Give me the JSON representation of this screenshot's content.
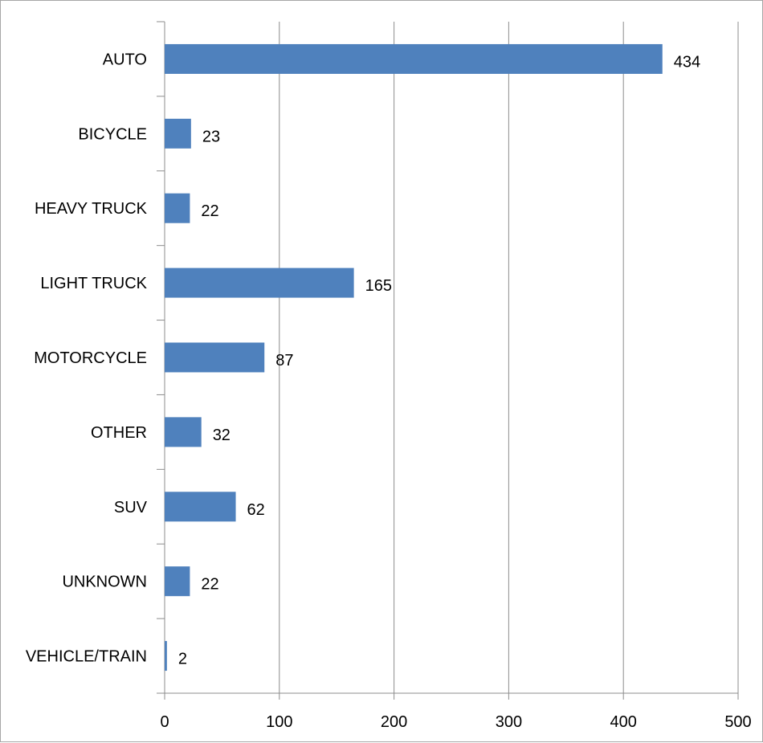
{
  "chart_data": {
    "type": "bar",
    "orientation": "horizontal",
    "categories": [
      "AUTO",
      "BICYCLE",
      "HEAVY TRUCK",
      "LIGHT TRUCK",
      "MOTORCYCLE",
      "OTHER",
      "SUV",
      "UNKNOWN",
      "VEHICLE/TRAIN"
    ],
    "values": [
      434,
      23,
      22,
      165,
      87,
      32,
      62,
      22,
      2
    ],
    "data_labels": [
      "434",
      "23",
      "22",
      "165",
      "87",
      "32",
      "62",
      "22",
      "2"
    ],
    "xlim": [
      0,
      500
    ],
    "x_ticks": [
      0,
      100,
      200,
      300,
      400,
      500
    ],
    "x_tick_labels": [
      "0",
      "100",
      "200",
      "300",
      "400",
      "500"
    ],
    "title": "",
    "xlabel": "",
    "ylabel": "",
    "grid": "vertical",
    "legend": "none",
    "colors": {
      "bar": "#4f81bd",
      "grid": "#8c8c8c",
      "axis": "#8c8c8c",
      "frame": "#a6a6a6"
    }
  }
}
